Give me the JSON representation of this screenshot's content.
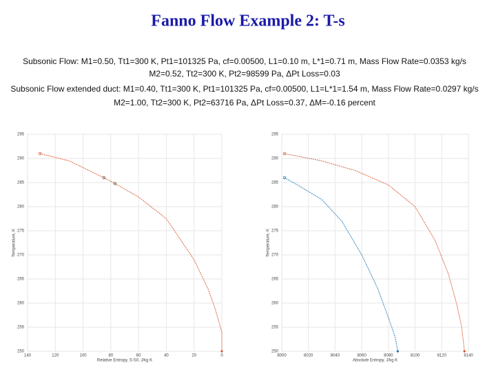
{
  "slide": {
    "title": "Fanno Flow Example 2: T-s",
    "lines": [
      "Subsonic Flow: M1=0.50, Tt1=300 K, Pt1=101325 Pa, cf=0.00500, L1=0.10 m, L*1=0.71 m, Mass Flow Rate=0.0353 kg/s",
      "M2=0.52, Tt2=300 K, Pt2=98599 Pa, ΔPt Loss=0.03",
      "Subsonic Flow extended duct: M1=0.40, Tt1=300 K, Pt1=101325 Pa, cf=0.00500, L1=L*1=1.54 m, Mass Flow Rate=0.0297 kg/s",
      "M2=1.00, Tt2=300 K, Pt2=63716 Pa, ΔPt Loss=0.37, ΔM=-0.16 percent"
    ]
  },
  "chart_data": [
    {
      "type": "line",
      "xlabel": "Relative Entropy, S-S0, J/kg K",
      "ylabel": "Temperature, K",
      "xlim": [
        140,
        0
      ],
      "xticks": [
        140,
        120,
        100,
        80,
        60,
        40,
        20,
        0
      ],
      "ylim": [
        250,
        295
      ],
      "yticks": [
        250,
        255,
        260,
        265,
        270,
        275,
        280,
        285,
        290,
        295
      ],
      "grid": true,
      "series": [
        {
          "color": "#d9542a",
          "x": [
            131,
            110,
            85,
            77,
            60,
            40,
            20,
            10,
            5,
            2,
            0,
            0
          ],
          "values": [
            291,
            289.5,
            286,
            284.8,
            282,
            277.5,
            269,
            263,
            259,
            256,
            254,
            250
          ]
        },
        {
          "color": "#555555",
          "style": "markers",
          "x": [
            85,
            77
          ],
          "values": [
            286,
            284.8
          ]
        }
      ]
    },
    {
      "type": "line",
      "xlabel": "Absolute Entropy, J/kg K",
      "ylabel": "Temperature, K",
      "xlim": [
        8000,
        8140
      ],
      "xticks": [
        8000,
        8020,
        8040,
        8060,
        8080,
        8100,
        8120,
        8140
      ],
      "ylim": [
        250,
        295
      ],
      "yticks": [
        250,
        255,
        260,
        265,
        270,
        275,
        280,
        285,
        290,
        295
      ],
      "grid": true,
      "series": [
        {
          "color": "#d9542a",
          "x": [
            8002,
            8030,
            8055,
            8080,
            8100,
            8115,
            8125,
            8131,
            8135,
            8137
          ],
          "values": [
            291,
            289.5,
            287.5,
            284.5,
            280,
            273,
            266,
            260,
            255,
            250
          ]
        },
        {
          "color": "#1f77b4",
          "x": [
            8002,
            8010,
            8030,
            8045,
            8060,
            8072,
            8080,
            8085,
            8087
          ],
          "values": [
            286,
            284.8,
            281.5,
            277,
            270,
            263,
            257,
            253,
            250
          ]
        }
      ]
    }
  ]
}
